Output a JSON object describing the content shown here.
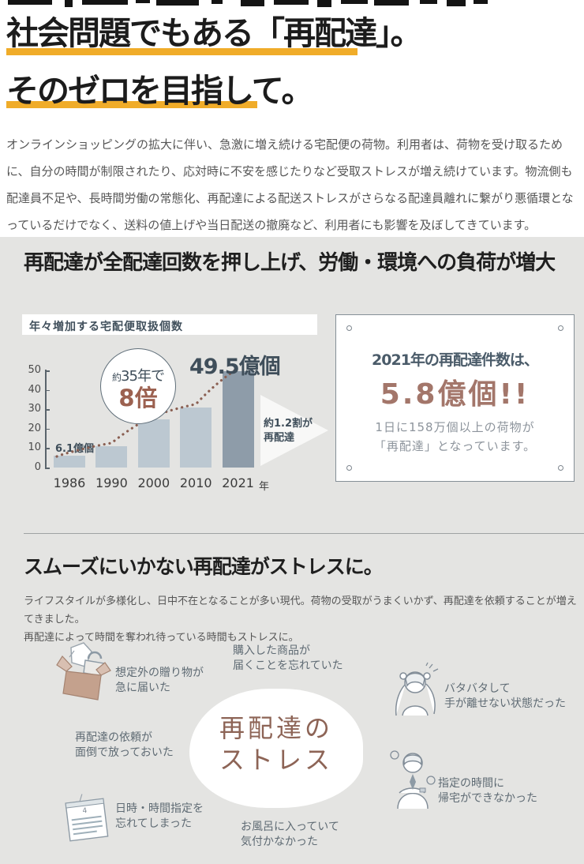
{
  "colors": {
    "accent_underline": "#f0ac29",
    "section_background": "#e4e4e2",
    "bar_light": "#bcc8d1",
    "bar_highlight": "#8e9ca9",
    "trend_dots": "#8a5f52",
    "brown_accent": "#9c6150",
    "dark_slate": "#41505c",
    "callout_big_text": "#a3766a",
    "body_text": "#565656"
  },
  "hero": {
    "title_line1": "社会問題でもある「再配達」。",
    "title_line2": "そのゼロを目指して。",
    "intro": "オンラインショッピングの拡大に伴い、急激に増え続ける宅配便の荷物。利用者は、荷物を受け取るために、自分の時間が制限されたり、応対時に不安を感じたりなど受取ストレスが増え続けています。物流側も配達員不足や、長時間労働の常態化、再配達による配送ストレスがさらなる配達員離れに繋がり悪循環となっているだけでなく、送料の値上げや当日配送の撤廃など、利用者にも影響を及ぼしてきています。"
  },
  "section1": {
    "heading": "再配達が全配達回数を押し上げ、労働・環境への負荷が増大",
    "badge_line1_prefix": "約",
    "badge_line1": "35年で",
    "badge_line2": "8倍",
    "first_bar_label": "6.1億個",
    "last_bar_label": "49.5億個",
    "arrow_note_line1": "約1.2割が",
    "arrow_note_line2": "再配達",
    "callout": {
      "line1": "2021年の再配達件数は、",
      "big": "5.8億個!!",
      "line2": "1日に158万個以上の荷物が",
      "line3": "「再配達」となっています。"
    }
  },
  "chart_data": {
    "type": "bar",
    "title": "年々増加する宅配便取扱個数",
    "categories": [
      "1986",
      "1990",
      "2000",
      "2010",
      "2021"
    ],
    "values": [
      6.1,
      11,
      25,
      31,
      49.5
    ],
    "x_unit": "年",
    "xlabel": "",
    "ylabel": "",
    "ylim": [
      0,
      50
    ],
    "yticks": [
      0,
      10,
      20,
      30,
      40,
      50
    ],
    "highlight_index": 4,
    "grid": false,
    "legend": "none",
    "annotations": [
      "約35年で8倍 (circle badge)",
      "6.1億個 (1986 bar)",
      "49.5億個 (2021 bar)",
      "約1.2割が再配達 (right arrow)"
    ],
    "trend_line": "dotted curve through bar tops"
  },
  "section2": {
    "heading": "スムーズにいかない再配達がストレスに。",
    "body_line1": "ライフスタイルが多様化し、日中不在となることが多い現代。荷物の受取がうまくいかず、再配達を依頼することが増えてきました。",
    "body_line2": "再配達によって時間を奪われ待っている時間もストレスに。",
    "center_line1": "再配達の",
    "center_line2": "ストレス",
    "stress_items": [
      {
        "icon": "gift-box-icon",
        "line1": "想定外の贈り物が",
        "line2": "急に届いた"
      },
      {
        "icon": "none",
        "line1": "購入した商品が",
        "line2": "届くことを忘れていた"
      },
      {
        "icon": "none",
        "line1": "再配達の依頼が",
        "line2": "面倒で放っておいた"
      },
      {
        "icon": "calendar-icon",
        "line1": "日時・時間指定を",
        "line2": "忘れてしまった"
      },
      {
        "icon": "none",
        "line1": "お風呂に入っていて",
        "line2": "気付かなかった"
      },
      {
        "icon": "busy-person-icon",
        "line1": "バタバタして",
        "line2": "手が離せない状態だった"
      },
      {
        "icon": "late-person-icon",
        "line1": "指定の時間に",
        "line2": "帰宅ができなかった"
      }
    ]
  }
}
